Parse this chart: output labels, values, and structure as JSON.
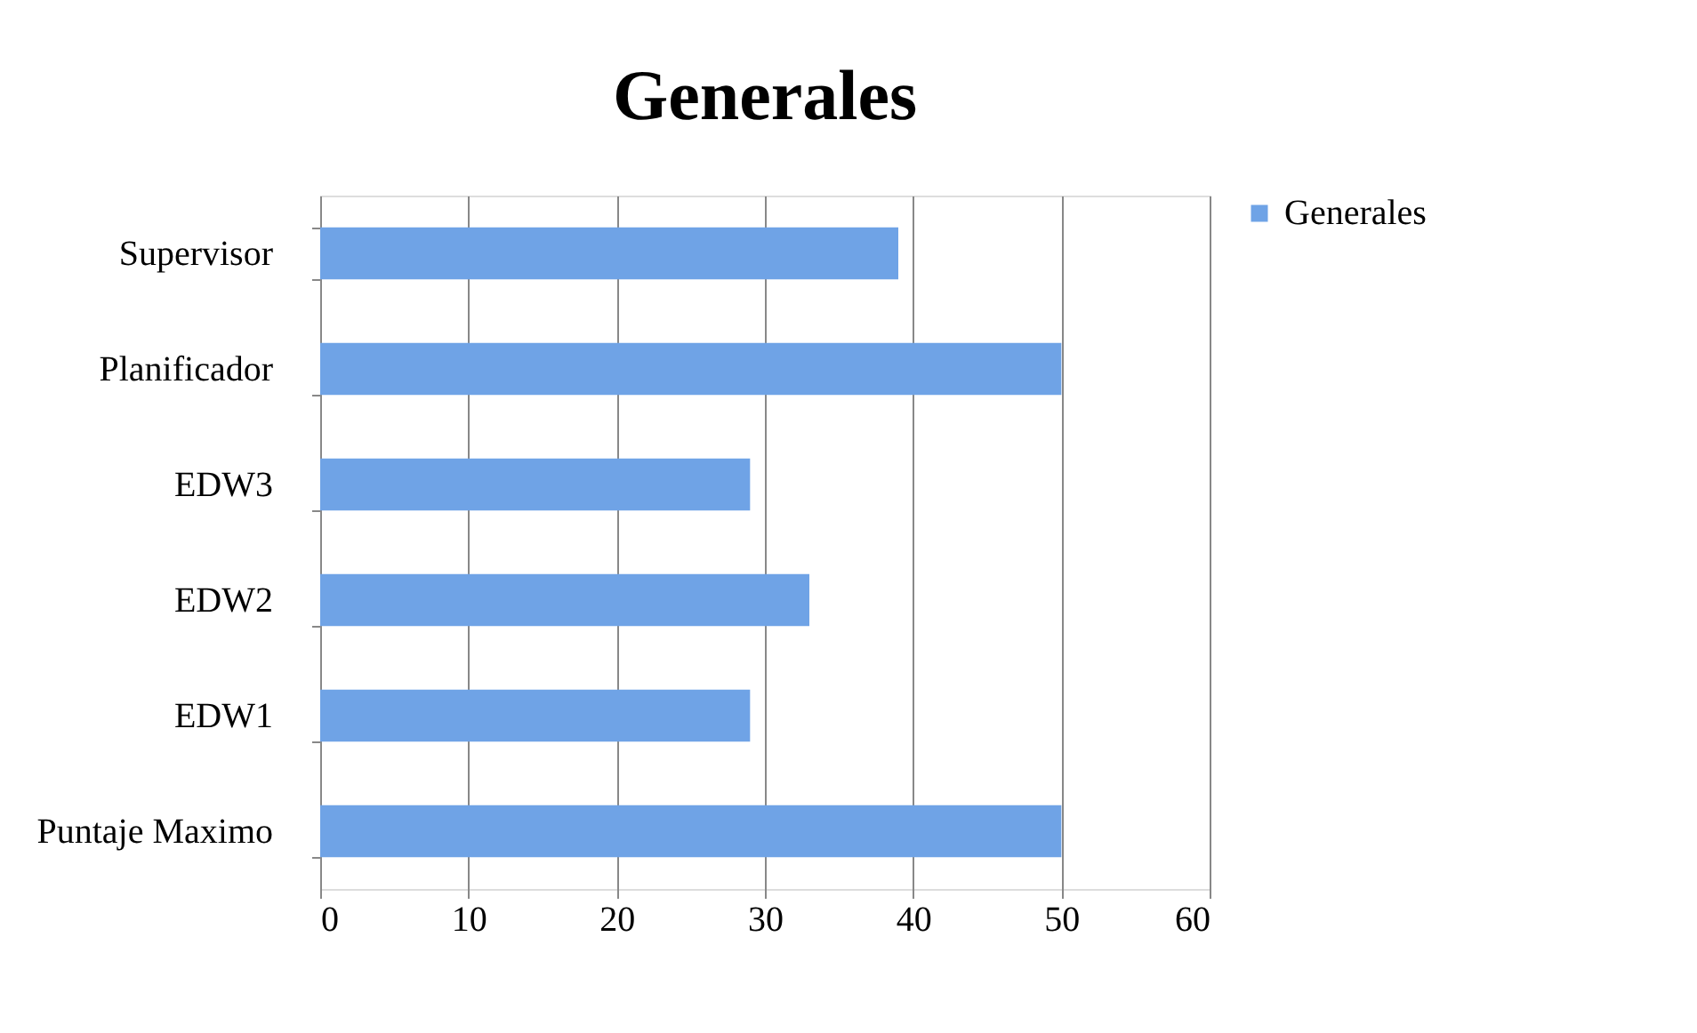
{
  "chart_data": {
    "type": "bar",
    "orientation": "horizontal",
    "title": "Generales",
    "categories": [
      "Supervisor",
      "Planificador",
      "EDW3",
      "EDW2",
      "EDW1",
      "Puntaje Maximo"
    ],
    "series": [
      {
        "name": "Generales",
        "color": "#6fa3e6",
        "values": [
          39,
          50,
          29,
          33,
          29,
          50
        ]
      }
    ],
    "xlim": [
      0,
      60
    ],
    "xticks": [
      0,
      10,
      20,
      30,
      40,
      50,
      60
    ],
    "grid": "x",
    "legend": "right"
  }
}
